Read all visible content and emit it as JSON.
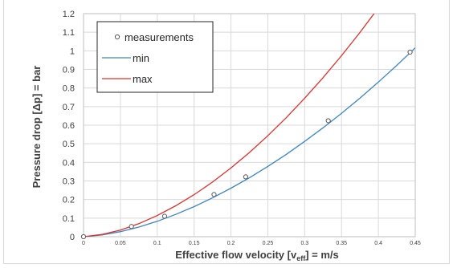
{
  "chart_data": {
    "type": "scatter",
    "title": "",
    "xlabel": "Effective flow velocity [v",
    "xlabel_sub": "eff",
    "xlabel_tail": "] = m/s",
    "ylabel": "Pressure drop [Δp] = bar",
    "xlim": [
      0,
      0.45
    ],
    "ylim": [
      0,
      1.2
    ],
    "x_ticks": [
      0,
      0.05,
      0.1,
      0.15,
      0.2,
      0.25,
      0.3,
      0.35,
      0.4,
      0.45
    ],
    "x_tick_labels": [
      "0",
      "0.05",
      "0.1",
      "0.15",
      "0.2",
      "0.25",
      "0.3",
      "0.35",
      "0.4",
      "0.45"
    ],
    "y_ticks": [
      0,
      0.1,
      0.2,
      0.3,
      0.4,
      0.5,
      0.6,
      0.7,
      0.8,
      0.9,
      1,
      1.1,
      1.2
    ],
    "y_tick_labels": [
      "0",
      "0.1",
      "0.2",
      "0.3",
      "0.4",
      "0.5",
      "0.6",
      "0.7",
      "0.8",
      "0.9",
      "1",
      "1.1",
      "1.2"
    ],
    "grid": true,
    "legend_position": "top-left",
    "series": [
      {
        "name": "measurements",
        "kind": "scatter",
        "color": "#595959",
        "x": [
          0,
          0.065,
          0.11,
          0.177,
          0.22,
          0.332,
          0.443
        ],
        "y": [
          0,
          0.055,
          0.11,
          0.227,
          0.322,
          0.624,
          0.993
        ]
      },
      {
        "name": "min",
        "kind": "line",
        "color": "#3a86c8",
        "x": [
          0,
          0.025,
          0.05,
          0.075,
          0.1,
          0.125,
          0.15,
          0.175,
          0.2,
          0.225,
          0.25,
          0.275,
          0.3,
          0.325,
          0.35,
          0.375,
          0.4,
          0.425,
          0.45
        ],
        "y": [
          0,
          0.009,
          0.027,
          0.052,
          0.083,
          0.12,
          0.162,
          0.209,
          0.261,
          0.317,
          0.378,
          0.443,
          0.513,
          0.586,
          0.664,
          0.746,
          0.832,
          0.922,
          1.016
        ]
      },
      {
        "name": "max",
        "kind": "line",
        "color": "#e0302b",
        "x": [
          0,
          0.025,
          0.05,
          0.075,
          0.1,
          0.125,
          0.15,
          0.175,
          0.2,
          0.225,
          0.25,
          0.275,
          0.3,
          0.325,
          0.35,
          0.375,
          0.4,
          0.41
        ],
        "y": [
          0,
          0.012,
          0.036,
          0.07,
          0.114,
          0.166,
          0.226,
          0.294,
          0.37,
          0.453,
          0.543,
          0.64,
          0.745,
          0.856,
          0.974,
          1.099,
          1.231,
          1.286
        ]
      }
    ]
  }
}
